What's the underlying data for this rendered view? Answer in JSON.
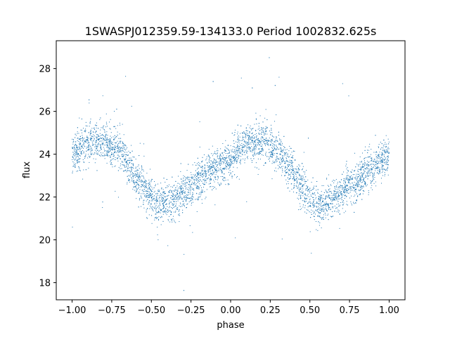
{
  "chart_data": {
    "type": "scatter",
    "title": "1SWASPJ012359.59-134133.0 Period 1002832.625s",
    "xlabel": "phase",
    "ylabel": "flux",
    "xlim": [
      -1.1,
      1.1
    ],
    "ylim": [
      17.2,
      29.3
    ],
    "xticks": [
      -1.0,
      -0.75,
      -0.5,
      -0.25,
      0.0,
      0.25,
      0.5,
      0.75,
      1.0
    ],
    "xtick_labels": [
      "−1.00",
      "−0.75",
      "−0.50",
      "−0.25",
      "0.00",
      "0.25",
      "0.50",
      "0.75",
      "1.00"
    ],
    "yticks": [
      18,
      20,
      22,
      24,
      26,
      28
    ],
    "ytick_labels": [
      "18",
      "20",
      "22",
      "24",
      "26",
      "28"
    ],
    "grid": false,
    "marker_color": "#1f77b4",
    "trend": {
      "description_phase": [
        -1.0,
        -0.9,
        -0.8,
        -0.7,
        -0.6,
        -0.5,
        -0.45,
        -0.4,
        -0.3,
        -0.2,
        -0.1,
        0.0,
        0.1,
        0.2,
        0.3,
        0.4,
        0.5,
        0.55,
        0.6,
        0.7,
        0.8,
        0.9,
        1.0
      ],
      "flux": [
        24.0,
        24.5,
        24.6,
        24.2,
        23.0,
        22.0,
        21.6,
        21.7,
        22.2,
        22.8,
        23.3,
        23.8,
        24.5,
        24.6,
        24.2,
        23.0,
        22.0,
        21.6,
        21.7,
        22.2,
        22.8,
        23.3,
        24.0
      ],
      "scatter_sigma": 0.45,
      "n_points": 5200
    }
  }
}
